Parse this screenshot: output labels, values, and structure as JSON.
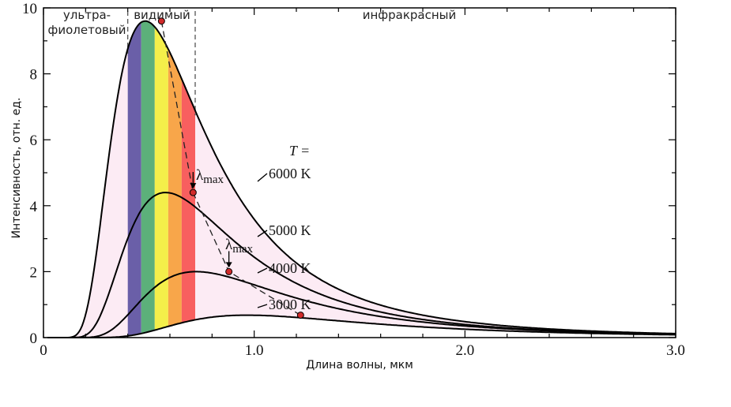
{
  "chart_data": {
    "type": "line",
    "xlabel": "Длина волны, мкм",
    "ylabel": "Интенсивность, отн. ед.",
    "xlim": [
      0,
      3.0
    ],
    "ylim": [
      0,
      10
    ],
    "x_ticks": [
      "0",
      "1.0",
      "2.0",
      "3.0"
    ],
    "x_tick_values": [
      0,
      1.0,
      2.0,
      3.0
    ],
    "y_ticks": [
      "0",
      "2",
      "4",
      "6",
      "8",
      "10"
    ],
    "y_tick_values": [
      0,
      2,
      4,
      6,
      8,
      10
    ],
    "regions": [
      {
        "label": "ультра-",
        "label2": "фиолетовый"
      },
      {
        "label": "видимый"
      },
      {
        "label": "инфракрасный"
      }
    ],
    "region_boundaries": [
      0.4,
      0.72
    ],
    "temperature_label": "T =",
    "series": [
      {
        "name": "6000 K",
        "temperature": 6000,
        "peak": {
          "x": 0.56,
          "y": 9.6
        }
      },
      {
        "name": "5000 K",
        "temperature": 5000,
        "peak": {
          "x": 0.71,
          "y": 4.4
        }
      },
      {
        "name": "4000 K",
        "temperature": 4000,
        "peak": {
          "x": 0.88,
          "y": 2.0
        }
      },
      {
        "name": "3000 K",
        "temperature": 3000,
        "peak": {
          "x": 1.22,
          "y": 0.68
        }
      }
    ],
    "annotations": [
      {
        "text": "λ",
        "sub": "max",
        "series": "5000 K"
      },
      {
        "text": "λ",
        "sub": "max",
        "series": "4000 K"
      }
    ],
    "colors": {
      "fill": "#fcebf4",
      "spectrum": [
        "#6a5fa8",
        "#5cb07a",
        "#f4ef4a",
        "#f8a64a",
        "#f85f5f"
      ],
      "marker": "#d02a2a"
    }
  }
}
